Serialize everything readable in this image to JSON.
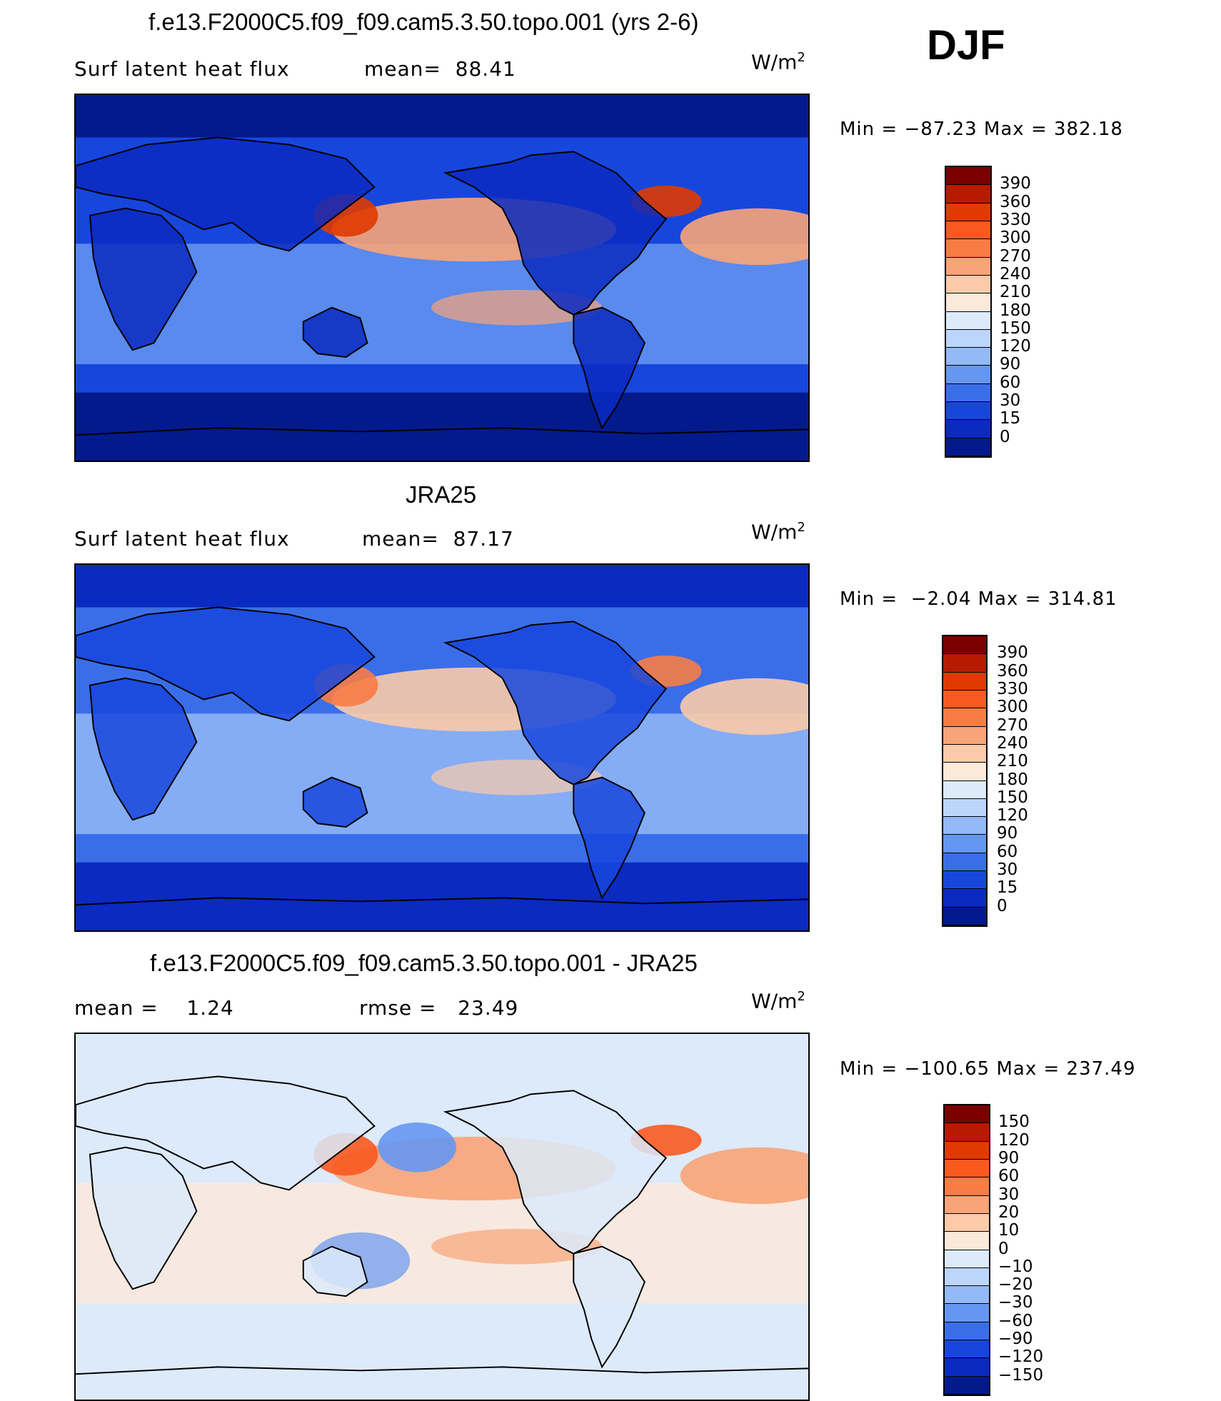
{
  "season": "DJF",
  "panels": [
    {
      "title": "f.e13.F2000C5.f09_f09.cam5.3.50.topo.001 (yrs 2-6)",
      "left_text": "Surf latent heat flux",
      "mid_text": "mean=  88.41",
      "units_base": "W/m",
      "units_exp": "2",
      "minmax": "Min = −87.23 Max = 382.18",
      "colorbar": {
        "labels": [
          "390",
          "360",
          "330",
          "300",
          "270",
          "240",
          "210",
          "180",
          "150",
          "120",
          "90",
          "60",
          "30",
          "15",
          "0"
        ],
        "colors": [
          "#7a0000",
          "#b81a00",
          "#e03a00",
          "#f85a20",
          "#f77c45",
          "#f8a478",
          "#fbcaa8",
          "#fbe9da",
          "#dceafa",
          "#bcd6fb",
          "#93b9f7",
          "#6597f1",
          "#3a6ee9",
          "#1746dd",
          "#0a2ac0",
          "#031a8c"
        ]
      },
      "map_palette": {
        "ocean_low": "#1746dd",
        "ocean_mid": "#6597f1",
        "warm": "#f8a478",
        "hot": "#e03a00",
        "land": "#0a2ac0",
        "polar": "#031a8c"
      }
    },
    {
      "title": "JRA25",
      "left_text": "Surf latent heat flux",
      "mid_text": "mean=  87.17",
      "units_base": "W/m",
      "units_exp": "2",
      "minmax": "Min =  −2.04 Max = 314.81",
      "colorbar": {
        "labels": [
          "390",
          "360",
          "330",
          "300",
          "270",
          "240",
          "210",
          "180",
          "150",
          "120",
          "90",
          "60",
          "30",
          "15",
          "0"
        ],
        "colors": [
          "#7a0000",
          "#b81a00",
          "#e03a00",
          "#f85a20",
          "#f77c45",
          "#f8a478",
          "#fbcaa8",
          "#fbe9da",
          "#dceafa",
          "#bcd6fb",
          "#93b9f7",
          "#6597f1",
          "#3a6ee9",
          "#1746dd",
          "#0a2ac0",
          "#031a8c"
        ]
      },
      "map_palette": {
        "ocean_low": "#3a6ee9",
        "ocean_mid": "#93b9f7",
        "warm": "#fbcaa8",
        "hot": "#f77c45",
        "land": "#1746dd",
        "polar": "#0a2ac0"
      }
    },
    {
      "title": "f.e13.F2000C5.f09_f09.cam5.3.50.topo.001 - JRA25",
      "left_text": "mean =    1.24",
      "mid_text": "rmse =   23.49",
      "units_base": "W/m",
      "units_exp": "2",
      "minmax": "Min = −100.65 Max = 237.49",
      "colorbar": {
        "labels": [
          "150",
          "120",
          "90",
          "60",
          "30",
          "20",
          "10",
          "0",
          "−10",
          "−20",
          "−30",
          "−60",
          "−90",
          "−120",
          "−150"
        ],
        "colors": [
          "#7a0000",
          "#b81a00",
          "#e03a00",
          "#f85a20",
          "#f77c45",
          "#f8a478",
          "#fbcaa8",
          "#fbe9da",
          "#dceafa",
          "#bcd6fb",
          "#93b9f7",
          "#6597f1",
          "#3a6ee9",
          "#1746dd",
          "#0a2ac0",
          "#031a8c"
        ]
      },
      "map_palette": {
        "ocean_low": "#dceafa",
        "ocean_mid": "#fbe9da",
        "warm": "#f8a478",
        "hot": "#f85a20",
        "land": "#dceafa",
        "polar": "#dceafa",
        "cool": "#6597f1"
      }
    }
  ]
}
